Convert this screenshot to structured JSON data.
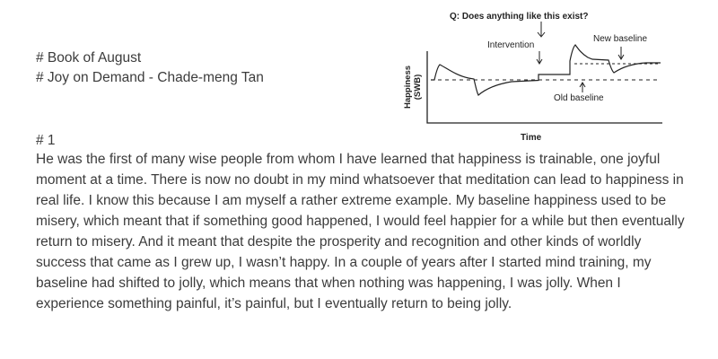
{
  "document": {
    "heading_1": "# Book of August",
    "heading_2": "# Joy on Demand - Chade-meng Tan",
    "section": "# 1",
    "paragraph": "He was the first of many wise people from whom I have learned that happiness is trainable, one joyful moment at a time. There is now no doubt in my mind whatsoever that meditation can lead to happiness in real life. I know this because I am myself a rather extreme example. My baseline happiness used to be misery, which meant that if something good happened, I would feel happier for a while but then eventually return to misery. And it meant that despite the prosperity and recognition and other kinds of worldly success that came as I grew up, I wasn’t happy. In a couple of years after I started mind training, my baseline had shifted to jolly, which means that when nothing was happening, I was jolly. When I experience something painful, it’s painful, but I eventually return to being jolly."
  },
  "figure": {
    "question": "Q: Does anything like this exist?",
    "y_label_1": "Happiness",
    "y_label_2": "(SWB)",
    "x_label": "Time",
    "label_intervention": "Intervention",
    "label_new_baseline": "New baseline",
    "label_old_baseline": "Old baseline"
  }
}
